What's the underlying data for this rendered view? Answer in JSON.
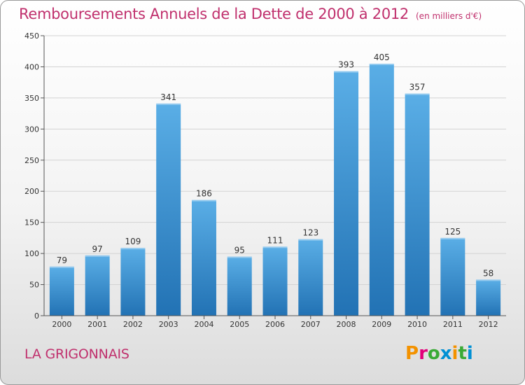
{
  "header": {
    "title": "Remboursements Annuels de la Dette de 2000 à 2012",
    "subtitle": "(en milliers d'€)"
  },
  "footer": {
    "commune": "LA GRIGONNAIS",
    "logo": [
      "P",
      "r",
      "o",
      "x",
      "i",
      "t",
      "i"
    ]
  },
  "colors": {
    "title": "#c0306d",
    "bar_top": "#5aaee6",
    "bar_bottom": "#2272b4",
    "grid": "#d3d3d3",
    "axis_text": "#333333"
  },
  "chart_data": {
    "type": "bar",
    "categories": [
      "2000",
      "2001",
      "2002",
      "2003",
      "2004",
      "2005",
      "2006",
      "2007",
      "2008",
      "2009",
      "2010",
      "2011",
      "2012"
    ],
    "values": [
      79,
      97,
      109,
      341,
      186,
      95,
      111,
      123,
      393,
      405,
      357,
      125,
      58
    ],
    "data_labels": [
      "79",
      "97",
      "109",
      "341",
      "186",
      "95",
      "111",
      "123",
      "393",
      "405",
      "357",
      "125",
      "58"
    ],
    "title": "Remboursements Annuels de la Dette de 2000 à 2012",
    "subtitle": "(en milliers d'€)",
    "xlabel": "",
    "ylabel": "",
    "ylim": [
      0,
      450
    ],
    "yticks": [
      0,
      50,
      100,
      150,
      200,
      250,
      300,
      350,
      400,
      450
    ],
    "ytick_labels": [
      "0",
      "50",
      "100",
      "150",
      "200",
      "250",
      "300",
      "350",
      "400",
      "450"
    ],
    "grid": true,
    "legend": "none"
  }
}
